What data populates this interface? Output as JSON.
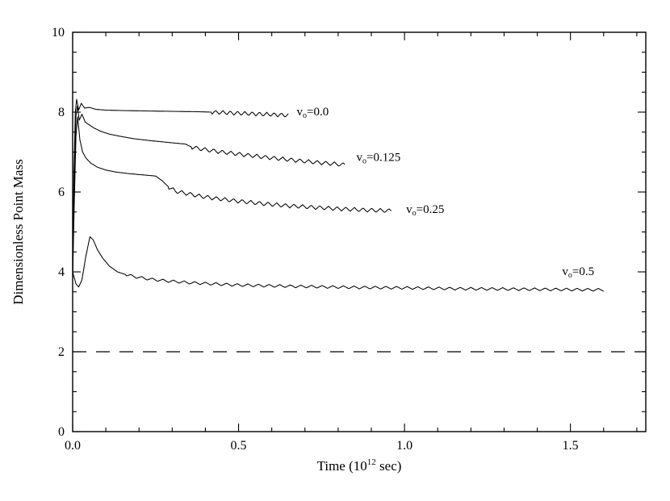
{
  "page": {
    "background": "#ffffff"
  },
  "chart_data": {
    "type": "line",
    "title": "",
    "xlabel": {
      "pre": "Time (10",
      "sup": "12",
      "post": " sec)"
    },
    "ylabel": "Dimensionless Point Mass",
    "xlim": [
      0,
      1.727
    ],
    "ylim": [
      0,
      10
    ],
    "grid": false,
    "frame": true,
    "line_color": "#000000",
    "xticks": {
      "major": [
        0.0,
        0.5,
        1.0,
        1.5
      ],
      "labels": [
        "0.0",
        "0.5",
        "1.0",
        "1.5"
      ],
      "minor_step": 0.1
    },
    "yticks": {
      "major": [
        0,
        2,
        4,
        6,
        8,
        10
      ],
      "labels": [
        "0",
        "2",
        "4",
        "6",
        "8",
        "10"
      ],
      "minor_step": 0.5
    },
    "dashed_line": {
      "y": 2.0,
      "x_start": 0.0,
      "x_end": 1.727
    },
    "series": [
      {
        "name": "v_o=0.0",
        "label": {
          "pre": "v",
          "sub": "o",
          "post": "=0.0"
        },
        "label_pos": {
          "x": 0.675,
          "y": 8.02
        },
        "oscillation": {
          "start_x": 0.42,
          "amplitude": 0.05,
          "period": 0.022
        },
        "points": [
          [
            0.0,
            3.9
          ],
          [
            0.004,
            6.5
          ],
          [
            0.008,
            8.0
          ],
          [
            0.012,
            8.32
          ],
          [
            0.018,
            8.05
          ],
          [
            0.026,
            8.22
          ],
          [
            0.036,
            8.1
          ],
          [
            0.05,
            8.12
          ],
          [
            0.07,
            8.07
          ],
          [
            0.1,
            8.05
          ],
          [
            0.15,
            8.04
          ],
          [
            0.22,
            8.03
          ],
          [
            0.3,
            8.02
          ],
          [
            0.38,
            8.01
          ],
          [
            0.42,
            8.0
          ],
          [
            0.48,
            7.98
          ],
          [
            0.54,
            7.96
          ],
          [
            0.6,
            7.94
          ],
          [
            0.65,
            7.92
          ]
        ]
      },
      {
        "name": "v_o=0.125",
        "label": {
          "pre": "v",
          "sub": "o",
          "post": "=0.125"
        },
        "label_pos": {
          "x": 0.855,
          "y": 6.88
        },
        "oscillation": {
          "start_x": 0.36,
          "amplitude": 0.05,
          "period": 0.026
        },
        "points": [
          [
            0.0,
            3.85
          ],
          [
            0.005,
            6.2
          ],
          [
            0.01,
            7.9
          ],
          [
            0.014,
            8.15
          ],
          [
            0.02,
            7.8
          ],
          [
            0.028,
            7.95
          ],
          [
            0.038,
            7.75
          ],
          [
            0.05,
            7.68
          ],
          [
            0.065,
            7.6
          ],
          [
            0.085,
            7.52
          ],
          [
            0.11,
            7.45
          ],
          [
            0.14,
            7.4
          ],
          [
            0.18,
            7.34
          ],
          [
            0.23,
            7.29
          ],
          [
            0.29,
            7.24
          ],
          [
            0.34,
            7.2
          ],
          [
            0.36,
            7.12
          ],
          [
            0.4,
            7.06
          ],
          [
            0.45,
            7.0
          ],
          [
            0.51,
            6.94
          ],
          [
            0.57,
            6.88
          ],
          [
            0.64,
            6.82
          ],
          [
            0.71,
            6.76
          ],
          [
            0.78,
            6.71
          ],
          [
            0.82,
            6.68
          ]
        ]
      },
      {
        "name": "v_o=0.25",
        "label": {
          "pre": "v",
          "sub": "o",
          "post": "=0.25"
        },
        "label_pos": {
          "x": 1.005,
          "y": 5.58
        },
        "oscillation": {
          "start_x": 0.29,
          "amplitude": 0.05,
          "period": 0.026
        },
        "points": [
          [
            0.0,
            3.8
          ],
          [
            0.005,
            5.8
          ],
          [
            0.01,
            7.4
          ],
          [
            0.015,
            7.88
          ],
          [
            0.022,
            7.3
          ],
          [
            0.03,
            7.0
          ],
          [
            0.04,
            6.85
          ],
          [
            0.055,
            6.72
          ],
          [
            0.075,
            6.62
          ],
          [
            0.1,
            6.55
          ],
          [
            0.13,
            6.5
          ],
          [
            0.17,
            6.46
          ],
          [
            0.21,
            6.43
          ],
          [
            0.25,
            6.4
          ],
          [
            0.27,
            6.28
          ],
          [
            0.29,
            6.12
          ],
          [
            0.31,
            6.02
          ],
          [
            0.34,
            5.97
          ],
          [
            0.38,
            5.9
          ],
          [
            0.43,
            5.84
          ],
          [
            0.49,
            5.78
          ],
          [
            0.56,
            5.72
          ],
          [
            0.64,
            5.66
          ],
          [
            0.72,
            5.62
          ],
          [
            0.8,
            5.58
          ],
          [
            0.88,
            5.55
          ],
          [
            0.96,
            5.53
          ]
        ]
      },
      {
        "name": "v_o=0.5",
        "label": {
          "pre": "v",
          "sub": "o",
          "post": "=0.5"
        },
        "label_pos": {
          "x": 1.475,
          "y": 4.02
        },
        "oscillation": {
          "start_x": 0.16,
          "amplitude": 0.035,
          "period": 0.032
        },
        "points": [
          [
            0.0,
            4.0
          ],
          [
            0.01,
            3.7
          ],
          [
            0.018,
            3.62
          ],
          [
            0.028,
            3.8
          ],
          [
            0.04,
            4.4
          ],
          [
            0.052,
            4.88
          ],
          [
            0.062,
            4.8
          ],
          [
            0.075,
            4.55
          ],
          [
            0.09,
            4.35
          ],
          [
            0.11,
            4.15
          ],
          [
            0.135,
            4.0
          ],
          [
            0.165,
            3.92
          ],
          [
            0.2,
            3.86
          ],
          [
            0.24,
            3.81
          ],
          [
            0.29,
            3.77
          ],
          [
            0.35,
            3.73
          ],
          [
            0.42,
            3.7
          ],
          [
            0.5,
            3.67
          ],
          [
            0.6,
            3.65
          ],
          [
            0.72,
            3.63
          ],
          [
            0.86,
            3.61
          ],
          [
            1.0,
            3.6
          ],
          [
            1.15,
            3.58
          ],
          [
            1.3,
            3.57
          ],
          [
            1.45,
            3.56
          ],
          [
            1.6,
            3.55
          ]
        ]
      }
    ]
  }
}
